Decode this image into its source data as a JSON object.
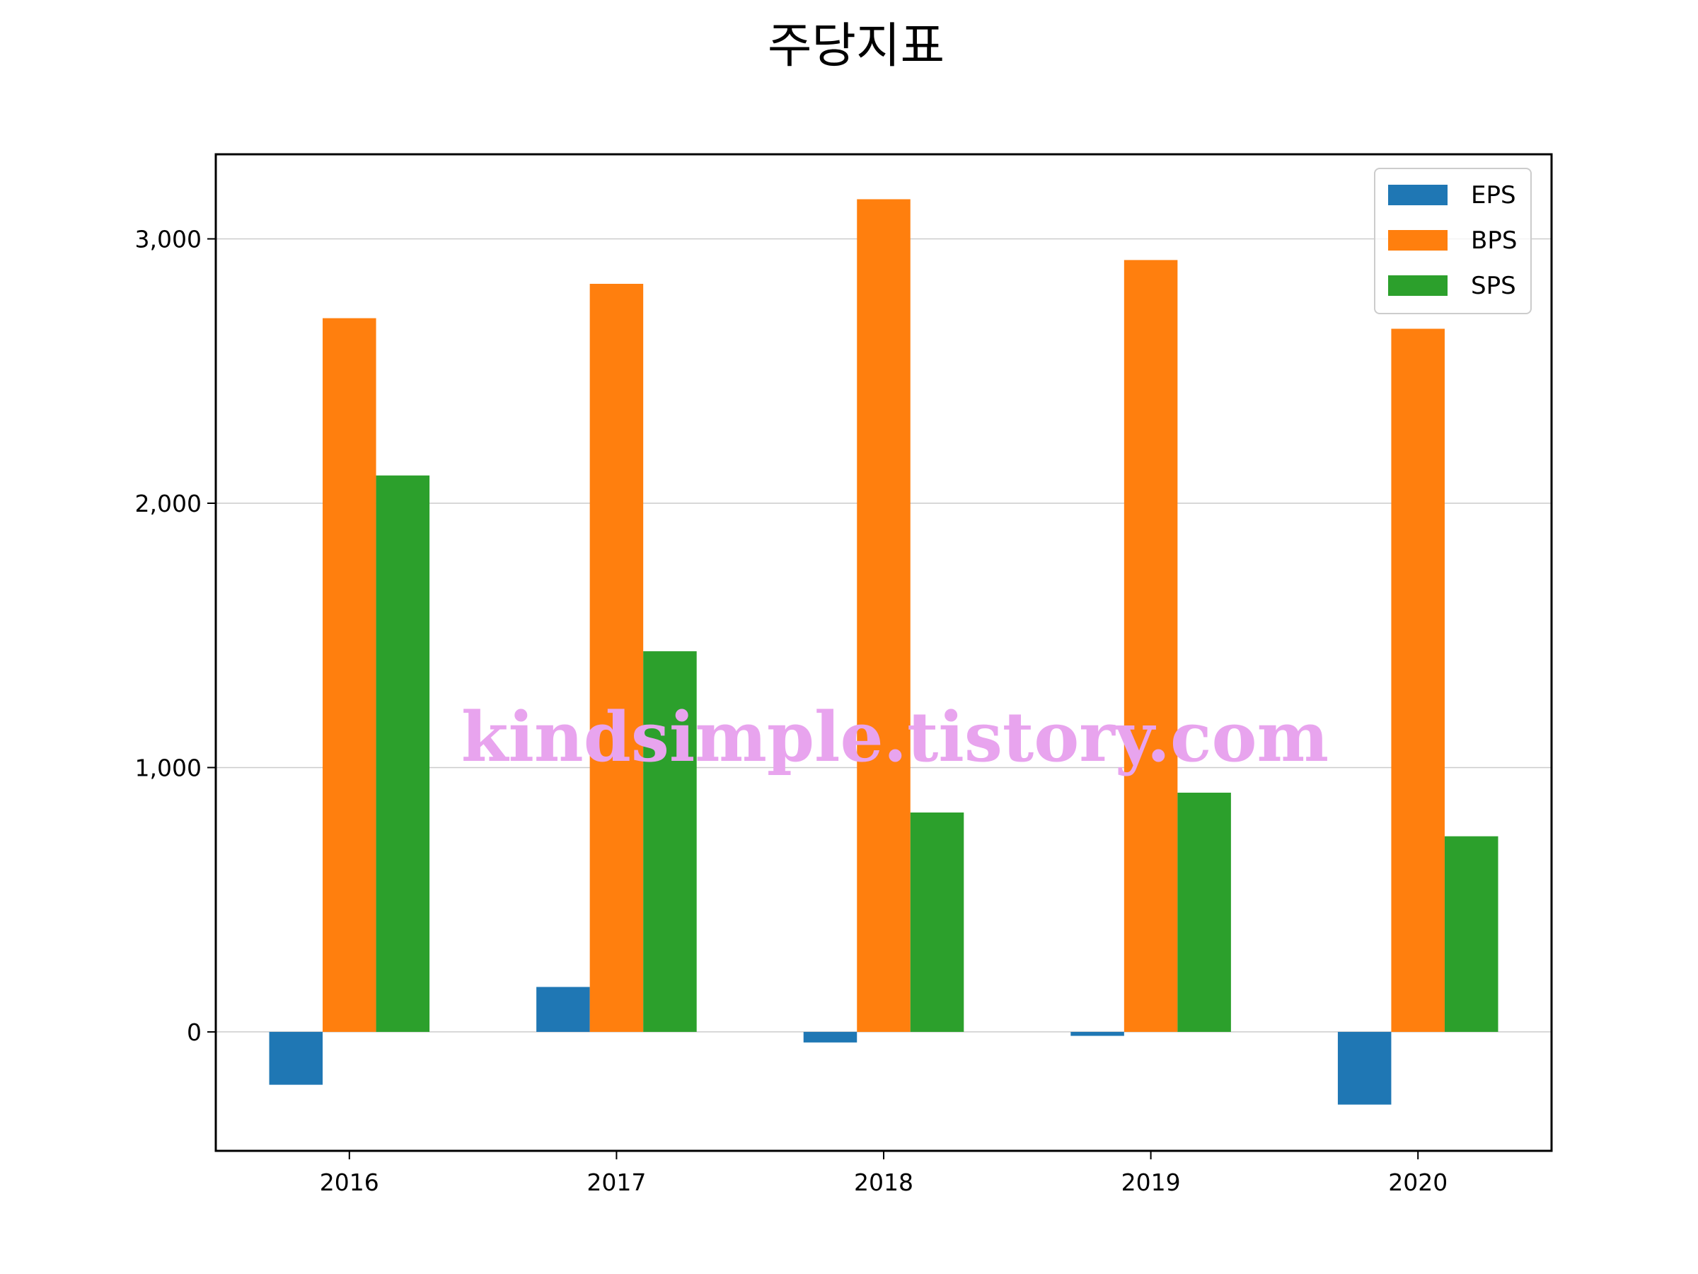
{
  "watermark": "kindsimple.tistory.com",
  "chart_data": {
    "type": "bar",
    "title": "주당지표",
    "xlabel": "",
    "ylabel": "",
    "categories": [
      "2016",
      "2017",
      "2018",
      "2019",
      "2020"
    ],
    "series": [
      {
        "name": "EPS",
        "color": "#1f77b4",
        "values": [
          -200,
          170,
          -40,
          -15,
          -275
        ]
      },
      {
        "name": "BPS",
        "color": "#ff7f0e",
        "values": [
          2700,
          2830,
          3150,
          2920,
          2660
        ]
      },
      {
        "name": "SPS",
        "color": "#2ca02c",
        "values": [
          2105,
          1440,
          830,
          905,
          740
        ]
      }
    ],
    "ylim": [
      -450,
      3320
    ],
    "yticks": [
      0,
      1000,
      2000,
      3000
    ],
    "ytick_labels": [
      "0",
      "1,000",
      "2,000",
      "3,000"
    ],
    "grid": "y",
    "legend": "top-right"
  }
}
